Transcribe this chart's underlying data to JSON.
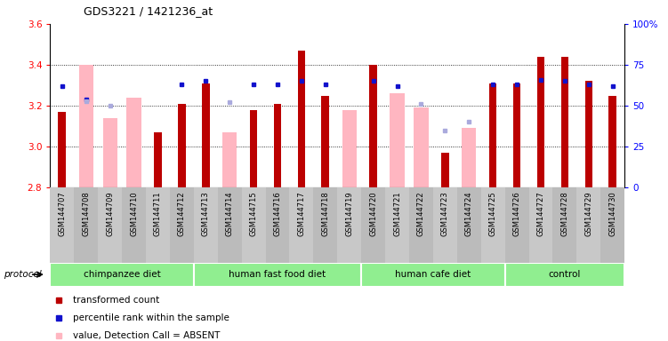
{
  "title": "GDS3221 / 1421236_at",
  "samples": [
    "GSM144707",
    "GSM144708",
    "GSM144709",
    "GSM144710",
    "GSM144711",
    "GSM144712",
    "GSM144713",
    "GSM144714",
    "GSM144715",
    "GSM144716",
    "GSM144717",
    "GSM144718",
    "GSM144719",
    "GSM144720",
    "GSM144721",
    "GSM144722",
    "GSM144723",
    "GSM144724",
    "GSM144725",
    "GSM144726",
    "GSM144727",
    "GSM144728",
    "GSM144729",
    "GSM144730"
  ],
  "transformed_count": [
    3.17,
    null,
    null,
    null,
    3.07,
    3.21,
    3.31,
    null,
    3.18,
    3.21,
    3.47,
    3.25,
    null,
    3.4,
    null,
    null,
    2.97,
    null,
    3.31,
    3.31,
    3.44,
    3.44,
    3.32,
    3.25
  ],
  "percentile_rank": [
    62,
    54,
    null,
    null,
    null,
    63,
    65,
    null,
    63,
    63,
    65,
    63,
    null,
    65,
    62,
    null,
    null,
    null,
    63,
    63,
    66,
    65,
    63,
    62
  ],
  "absent_value": [
    null,
    3.4,
    3.14,
    3.24,
    null,
    null,
    null,
    3.07,
    null,
    null,
    null,
    null,
    3.18,
    null,
    3.26,
    3.19,
    null,
    3.09,
    null,
    null,
    null,
    null,
    null,
    null
  ],
  "absent_rank": [
    null,
    53,
    50,
    null,
    null,
    null,
    null,
    52,
    null,
    null,
    null,
    null,
    null,
    null,
    null,
    51,
    35,
    40,
    null,
    null,
    null,
    null,
    null,
    null
  ],
  "groups": [
    {
      "label": "chimpanzee diet",
      "start": 0,
      "end": 6
    },
    {
      "label": "human fast food diet",
      "start": 6,
      "end": 13
    },
    {
      "label": "human cafe diet",
      "start": 13,
      "end": 19
    },
    {
      "label": "control",
      "start": 19,
      "end": 24
    }
  ],
  "ylim_left": [
    2.8,
    3.6
  ],
  "ylim_right": [
    0,
    100
  ],
  "yticks_left": [
    2.8,
    3.0,
    3.2,
    3.4,
    3.6
  ],
  "yticks_right": [
    0,
    25,
    50,
    75,
    100
  ],
  "bar_color_dark_red": "#BB0000",
  "bar_color_pink": "#FFB6C1",
  "dot_color_blue": "#1111CC",
  "dot_color_light_blue": "#AAAADD",
  "group_color": "#90EE90",
  "bg_tick_color": "#CCCCCC",
  "legend_items": [
    {
      "color": "#BB0000",
      "label": "transformed count"
    },
    {
      "color": "#1111CC",
      "label": "percentile rank within the sample"
    },
    {
      "color": "#FFB6C1",
      "label": "value, Detection Call = ABSENT"
    },
    {
      "color": "#AAAADD",
      "label": "rank, Detection Call = ABSENT"
    }
  ]
}
